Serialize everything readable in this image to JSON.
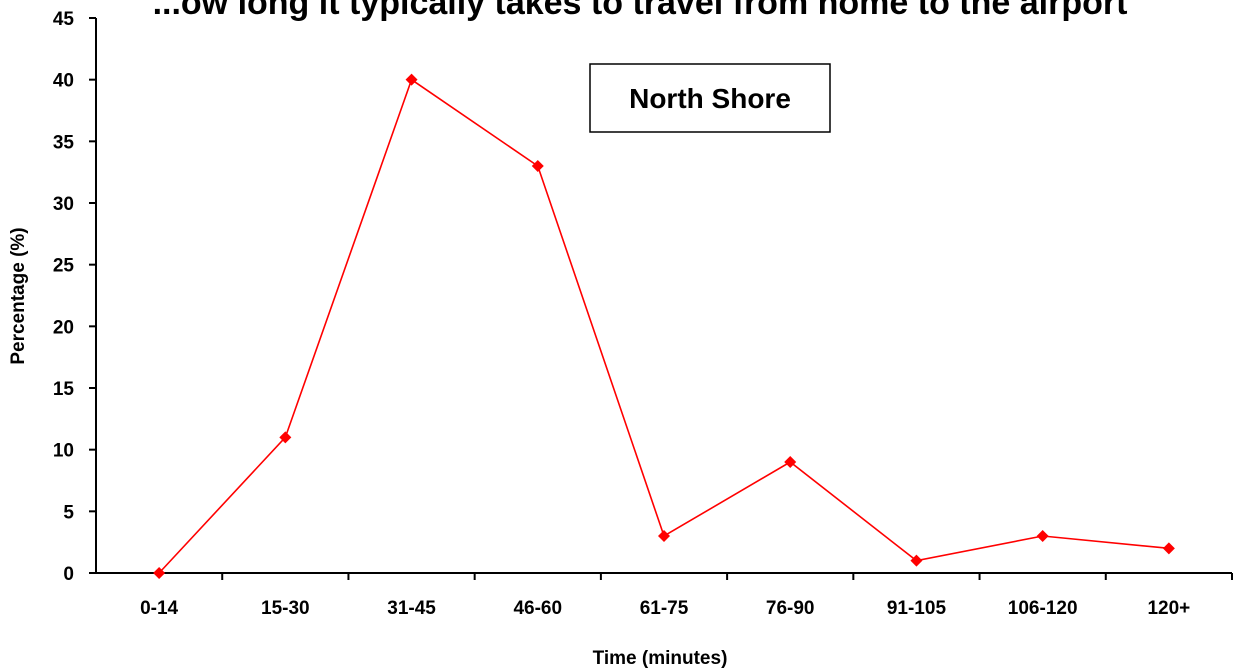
{
  "chart_data": {
    "type": "line",
    "title": "...ow long it typically takes to travel from home to the airport",
    "xlabel": "Time (minutes)",
    "ylabel": "Percentage (%)",
    "categories": [
      "0-14",
      "15-30",
      "31-45",
      "46-60",
      "61-75",
      "76-90",
      "91-105",
      "106-120",
      "120+"
    ],
    "series": [
      {
        "values": [
          0,
          11,
          40,
          33,
          3,
          9,
          1,
          3,
          2
        ],
        "color": "#ff0000",
        "marker": "diamond"
      }
    ],
    "ylim": [
      0,
      45
    ],
    "yticks": [
      0,
      5,
      10,
      15,
      20,
      25,
      30,
      35,
      40,
      45
    ],
    "grid": false,
    "legend": "none",
    "annotation": "North Shore"
  }
}
